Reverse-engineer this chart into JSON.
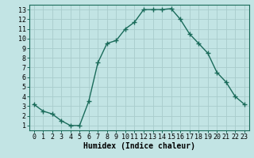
{
  "x": [
    0,
    1,
    2,
    3,
    4,
    5,
    6,
    7,
    8,
    9,
    10,
    11,
    12,
    13,
    14,
    15,
    16,
    17,
    18,
    19,
    20,
    21,
    22,
    23
  ],
  "y": [
    3.2,
    2.5,
    2.2,
    1.5,
    1.0,
    1.0,
    3.5,
    7.5,
    9.5,
    9.8,
    11.0,
    11.7,
    13.0,
    13.0,
    13.0,
    13.1,
    12.0,
    10.5,
    9.5,
    8.5,
    6.5,
    5.5,
    4.0,
    3.2
  ],
  "line_color": "#1a6b5a",
  "marker": "+",
  "marker_color": "#1a6b5a",
  "bg_color": "#c2e4e4",
  "grid_color": "#a8cccc",
  "xlabel": "Humidex (Indice chaleur)",
  "xlim": [
    -0.5,
    23.5
  ],
  "ylim": [
    0.5,
    13.5
  ],
  "xticks": [
    0,
    1,
    2,
    3,
    4,
    5,
    6,
    7,
    8,
    9,
    10,
    11,
    12,
    13,
    14,
    15,
    16,
    17,
    18,
    19,
    20,
    21,
    22,
    23
  ],
  "yticks": [
    1,
    2,
    3,
    4,
    5,
    6,
    7,
    8,
    9,
    10,
    11,
    12,
    13
  ],
  "xlabel_fontsize": 7,
  "tick_fontsize": 6,
  "line_width": 1.0,
  "marker_size": 4
}
